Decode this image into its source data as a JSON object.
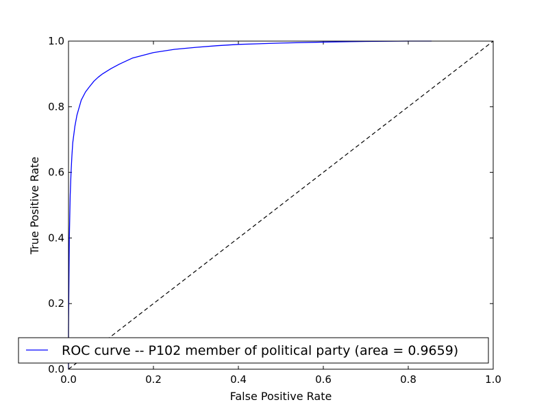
{
  "chart_data": {
    "type": "line",
    "title": "",
    "xlabel": "False Positive Rate",
    "ylabel": "True Positive Rate",
    "xlim": [
      0.0,
      1.0
    ],
    "ylim": [
      0.0,
      1.0
    ],
    "xticks": [
      "0.0",
      "0.2",
      "0.4",
      "0.6",
      "0.8",
      "1.0"
    ],
    "yticks": [
      "0.0",
      "0.2",
      "0.4",
      "0.6",
      "0.8",
      "1.0"
    ],
    "grid": false,
    "legend_position": "lower-right",
    "series": [
      {
        "name": "ROC curve -- P102 member of political party (area = 0.9659)",
        "color": "#0000ff",
        "style": "solid",
        "x": [
          0.0,
          0.0,
          0.002,
          0.004,
          0.006,
          0.008,
          0.01,
          0.015,
          0.02,
          0.03,
          0.04,
          0.05,
          0.06,
          0.07,
          0.08,
          0.1,
          0.12,
          0.15,
          0.2,
          0.25,
          0.3,
          0.35,
          0.4,
          0.5,
          0.6,
          0.7,
          0.8,
          0.855
        ],
        "y": [
          0.0,
          0.12,
          0.4,
          0.53,
          0.6,
          0.65,
          0.69,
          0.74,
          0.775,
          0.82,
          0.845,
          0.862,
          0.878,
          0.89,
          0.9,
          0.916,
          0.93,
          0.948,
          0.965,
          0.975,
          0.981,
          0.986,
          0.99,
          0.994,
          0.997,
          0.999,
          1.0,
          1.0
        ]
      },
      {
        "name": "",
        "color": "#000000",
        "style": "dashed",
        "x": [
          0.0,
          1.0
        ],
        "y": [
          0.0,
          1.0
        ]
      }
    ]
  }
}
